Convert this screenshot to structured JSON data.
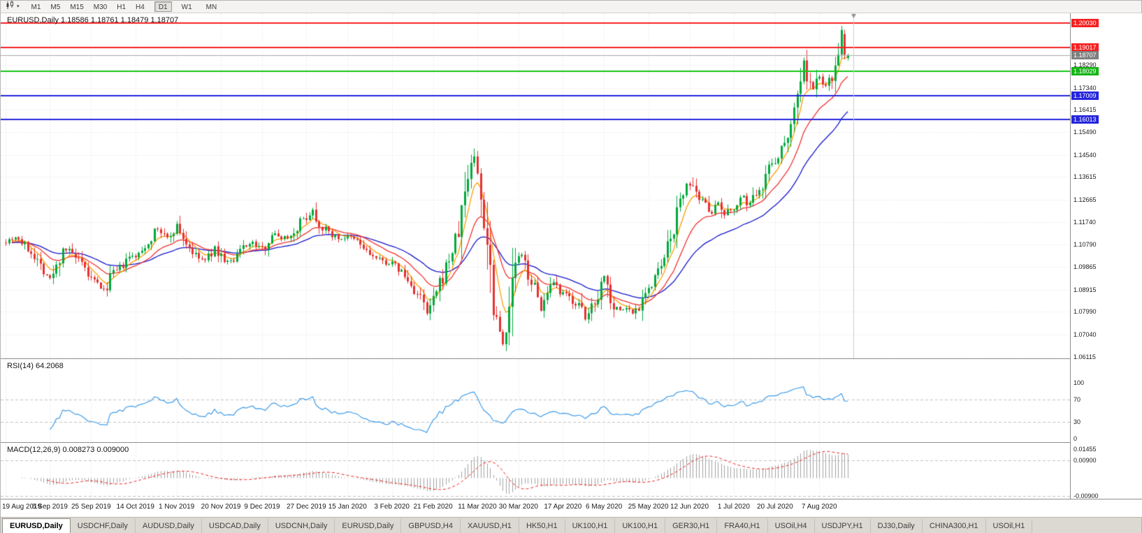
{
  "toolbar": {
    "timeframes": [
      "M1",
      "M5",
      "M15",
      "M30",
      "H1",
      "H4",
      "D1",
      "W1",
      "MN"
    ],
    "active_timeframe": "D1",
    "grouped_timeframes": [
      "D1",
      "W1",
      "MN"
    ]
  },
  "main_chart": {
    "title": "EURUSD,Daily 1.18586 1.18761 1.18479 1.18707",
    "price_range": {
      "max": 1.2045,
      "min": 1.0605
    },
    "grid_prices": [
      1.1829,
      1.1734,
      1.16415,
      1.1549,
      1.1454,
      1.13615,
      1.12665,
      1.1174,
      1.1079,
      1.09865,
      1.08915,
      1.0799,
      1.0704,
      1.06115
    ],
    "grid_price_labels": [
      "1.18290",
      "1.17340",
      "1.16415",
      "1.15490",
      "1.14540",
      "1.13615",
      "1.12665",
      "1.11740",
      "1.10790",
      "1.09865",
      "1.08915",
      "1.07990",
      "1.07040",
      "1.06115"
    ],
    "price_tags": [
      {
        "text": "1.20030",
        "price": 1.2003,
        "bg": "#f52020"
      },
      {
        "text": "1.19017",
        "price": 1.19017,
        "bg": "#f52020"
      },
      {
        "text": "1.18707",
        "price": 1.18707,
        "bg": "#7f7f7f"
      },
      {
        "text": "1.18029",
        "price": 1.18029,
        "bg": "#14b514"
      },
      {
        "text": "1.17009",
        "price": 1.17009,
        "bg": "#2525dd"
      },
      {
        "text": "1.16013",
        "price": 1.16013,
        "bg": "#2525dd"
      }
    ]
  },
  "rsi_panel": {
    "label": "RSI(14) 64.2068",
    "levels": [
      {
        "text": "100",
        "value": 100
      },
      {
        "text": "70",
        "value": 70
      },
      {
        "text": "30",
        "value": 30
      },
      {
        "text": "0",
        "value": 0
      }
    ],
    "dashed_values": [
      70,
      30
    ]
  },
  "macd_panel": {
    "label": "MACD(12,26,9) 0.008273 0.009000",
    "range": {
      "max": 0.01455,
      "min": -0.009
    },
    "levels": [
      {
        "text": "0.01455",
        "value": 0.01455
      },
      {
        "text": "0.00900",
        "value": 0.009
      },
      {
        "text": "-0.00900",
        "value": -0.009
      }
    ],
    "dashed_values": [
      0.009,
      -0.009
    ]
  },
  "date_axis": {
    "labels": [
      {
        "text": "19 Aug 2019",
        "bar": 0
      },
      {
        "text": "6 Sep 2019",
        "bar": 14
      },
      {
        "text": "25 Sep 2019",
        "bar": 27
      },
      {
        "text": "14 Oct 2019",
        "bar": 41
      },
      {
        "text": "1 Nov 2019",
        "bar": 54
      },
      {
        "text": "20 Nov 2019",
        "bar": 68
      },
      {
        "text": "9 Dec 2019",
        "bar": 81
      },
      {
        "text": "27 Dec 2019",
        "bar": 95
      },
      {
        "text": "15 Jan 2020",
        "bar": 108
      },
      {
        "text": "3 Feb 2020",
        "bar": 122
      },
      {
        "text": "21 Feb 2020",
        "bar": 135
      },
      {
        "text": "11 Mar 2020",
        "bar": 149
      },
      {
        "text": "30 Mar 2020",
        "bar": 162
      },
      {
        "text": "17 Apr 2020",
        "bar": 176
      },
      {
        "text": "6 May 2020",
        "bar": 189
      },
      {
        "text": "25 May 2020",
        "bar": 203
      },
      {
        "text": "12 Jun 2020",
        "bar": 216
      },
      {
        "text": "1 Jul 2020",
        "bar": 230
      },
      {
        "text": "20 Jul 2020",
        "bar": 243
      },
      {
        "text": "7 Aug 2020",
        "bar": 257
      }
    ]
  },
  "tabs": {
    "items": [
      {
        "label": "EURUSD,Daily",
        "active": true
      },
      {
        "label": "USDCHF,Daily",
        "active": false
      },
      {
        "label": "AUDUSD,Daily",
        "active": false
      },
      {
        "label": "USDCAD,Daily",
        "active": false
      },
      {
        "label": "USDCNH,Daily",
        "active": false
      },
      {
        "label": "EURUSD,Daily",
        "active": false
      },
      {
        "label": "GBPUSD,H4",
        "active": false
      },
      {
        "label": "XAUUSD,H1",
        "active": false
      },
      {
        "label": "HK50,H1",
        "active": false
      },
      {
        "label": "UK100,H1",
        "active": false
      },
      {
        "label": "UK100,H1",
        "active": false
      },
      {
        "label": "GER30,H1",
        "active": false
      },
      {
        "label": "FRA40,H1",
        "active": false
      },
      {
        "label": "USOil,H4",
        "active": false
      },
      {
        "label": "USDJPY,H1",
        "active": false
      },
      {
        "label": "DJ30,Daily",
        "active": false
      },
      {
        "label": "CHINA300,H1",
        "active": false
      },
      {
        "label": "USOil,H1",
        "active": false
      }
    ]
  },
  "colors": {
    "up_candle": "#00a83c",
    "down_candle": "#e43131",
    "ma_fast": "#ff9d00",
    "ma_mid": "#f23131",
    "ma_slow": "#1515cc",
    "rsi_line": "#3e9be8",
    "macd_hist": "#a0a0a0",
    "macd_signal": "#f02020",
    "grid": "#e2e2e2",
    "panel_border": "#8f8f8f",
    "level_dash": "#c0c0c0"
  },
  "chart_data": {
    "type": "candlestick",
    "symbol": "EURUSD",
    "period": "Daily",
    "current_bar": {
      "open": 1.18586,
      "high": 1.18761,
      "low": 1.18479,
      "close": 1.18707
    },
    "bars_total": 267,
    "ylim": [
      1.0605,
      1.2045
    ],
    "clamp": {
      "high": 1.1992,
      "low": 1.0615
    },
    "price_anchors": [
      [
        0,
        1.1095
      ],
      [
        3,
        1.1115
      ],
      [
        6,
        1.1075
      ],
      [
        9,
        1.1035
      ],
      [
        12,
        1.0975
      ],
      [
        14,
        1.0935
      ],
      [
        16,
        1.0985
      ],
      [
        18,
        1.107
      ],
      [
        21,
        1.104
      ],
      [
        24,
        1.099
      ],
      [
        27,
        1.0935
      ],
      [
        30,
        1.0905
      ],
      [
        31,
        1.0885
      ],
      [
        33,
        1.095
      ],
      [
        36,
        1.098
      ],
      [
        39,
        1.1025
      ],
      [
        42,
        1.1035
      ],
      [
        45,
        1.1095
      ],
      [
        48,
        1.1145
      ],
      [
        51,
        1.1105
      ],
      [
        54,
        1.116
      ],
      [
        57,
        1.1085
      ],
      [
        60,
        1.103
      ],
      [
        63,
        1.101
      ],
      [
        66,
        1.1065
      ],
      [
        69,
        1.1015
      ],
      [
        72,
        1.1005
      ],
      [
        75,
        1.1075
      ],
      [
        78,
        1.1085
      ],
      [
        81,
        1.106
      ],
      [
        84,
        1.1125
      ],
      [
        87,
        1.111
      ],
      [
        90,
        1.1115
      ],
      [
        93,
        1.1175
      ],
      [
        95,
        1.1195
      ],
      [
        97,
        1.1225
      ],
      [
        99,
        1.1165
      ],
      [
        102,
        1.113
      ],
      [
        105,
        1.1105
      ],
      [
        108,
        1.111
      ],
      [
        111,
        1.1095
      ],
      [
        114,
        1.105
      ],
      [
        117,
        1.102
      ],
      [
        120,
        1.1005
      ],
      [
        122,
        1.1
      ],
      [
        125,
        1.0965
      ],
      [
        128,
        1.0905
      ],
      [
        131,
        1.0855
      ],
      [
        133,
        1.079
      ],
      [
        135,
        1.0845
      ],
      [
        137,
        1.091
      ],
      [
        139,
        1.0985
      ],
      [
        141,
        1.1055
      ],
      [
        143,
        1.1135
      ],
      [
        145,
        1.13
      ],
      [
        147,
        1.143
      ],
      [
        148,
        1.1445
      ],
      [
        150,
        1.128
      ],
      [
        152,
        1.1105
      ],
      [
        154,
        1.0855
      ],
      [
        156,
        1.072
      ],
      [
        157,
        1.0675
      ],
      [
        159,
        1.0785
      ],
      [
        161,
        1.102
      ],
      [
        163,
        1.103
      ],
      [
        165,
        1.096
      ],
      [
        167,
        1.0895
      ],
      [
        169,
        1.0815
      ],
      [
        171,
        1.0865
      ],
      [
        173,
        1.0915
      ],
      [
        175,
        1.0875
      ],
      [
        177,
        1.087
      ],
      [
        179,
        1.0845
      ],
      [
        181,
        1.0825
      ],
      [
        183,
        1.0765
      ],
      [
        185,
        1.0825
      ],
      [
        187,
        1.0875
      ],
      [
        189,
        1.0955
      ],
      [
        190,
        1.0905
      ],
      [
        192,
        1.0825
      ],
      [
        194,
        1.0805
      ],
      [
        196,
        1.0815
      ],
      [
        198,
        1.0795
      ],
      [
        200,
        1.0825
      ],
      [
        202,
        1.0895
      ],
      [
        204,
        1.0905
      ],
      [
        206,
        1.0965
      ],
      [
        208,
        1.1015
      ],
      [
        210,
        1.1105
      ],
      [
        212,
        1.1205
      ],
      [
        214,
        1.1295
      ],
      [
        215,
        1.1345
      ],
      [
        217,
        1.1305
      ],
      [
        219,
        1.1255
      ],
      [
        221,
        1.1265
      ],
      [
        223,
        1.1215
      ],
      [
        225,
        1.1245
      ],
      [
        227,
        1.1195
      ],
      [
        229,
        1.1225
      ],
      [
        231,
        1.1255
      ],
      [
        233,
        1.1275
      ],
      [
        235,
        1.1245
      ],
      [
        237,
        1.1305
      ],
      [
        239,
        1.1335
      ],
      [
        241,
        1.1405
      ],
      [
        243,
        1.1435
      ],
      [
        245,
        1.1475
      ],
      [
        247,
        1.1555
      ],
      [
        249,
        1.1645
      ],
      [
        250,
        1.172
      ],
      [
        251,
        1.178
      ],
      [
        252,
        1.1845
      ],
      [
        253,
        1.1775
      ],
      [
        255,
        1.1725
      ],
      [
        257,
        1.1785
      ],
      [
        259,
        1.1735
      ],
      [
        261,
        1.179
      ],
      [
        262,
        1.184
      ],
      [
        263,
        1.19
      ],
      [
        264,
        1.195
      ],
      [
        265,
        1.1958
      ],
      [
        266,
        1.1871
      ]
    ],
    "second_last_bar": {
      "open": 1.1958,
      "high": 1.1976,
      "low": 1.1852,
      "close": 1.1872
    },
    "h_lines": [
      {
        "price": 1.2003,
        "color": "#f52020",
        "width": 2
      },
      {
        "price": 1.19017,
        "color": "#f52020",
        "width": 2
      },
      {
        "price": 1.18707,
        "color": "#a8a8a8",
        "width": 1
      },
      {
        "price": 1.18029,
        "color": "#14c514",
        "width": 2
      },
      {
        "price": 1.17009,
        "color": "#2525dd",
        "width": 2
      },
      {
        "price": 1.16013,
        "color": "#2525dd",
        "width": 2
      }
    ],
    "moving_averages": [
      {
        "name": "fast",
        "type": "ema",
        "period": 6
      },
      {
        "name": "mid",
        "type": "ema",
        "period": 16
      },
      {
        "name": "slow",
        "type": "ema",
        "period": 34
      }
    ],
    "indicators": {
      "rsi": {
        "period": 14,
        "current": 64.2068,
        "levels": [
          70,
          30
        ]
      },
      "macd": {
        "fast": 12,
        "slow": 26,
        "signal_period": 9,
        "current": 0.008273,
        "current_signal": 0.009
      }
    }
  }
}
